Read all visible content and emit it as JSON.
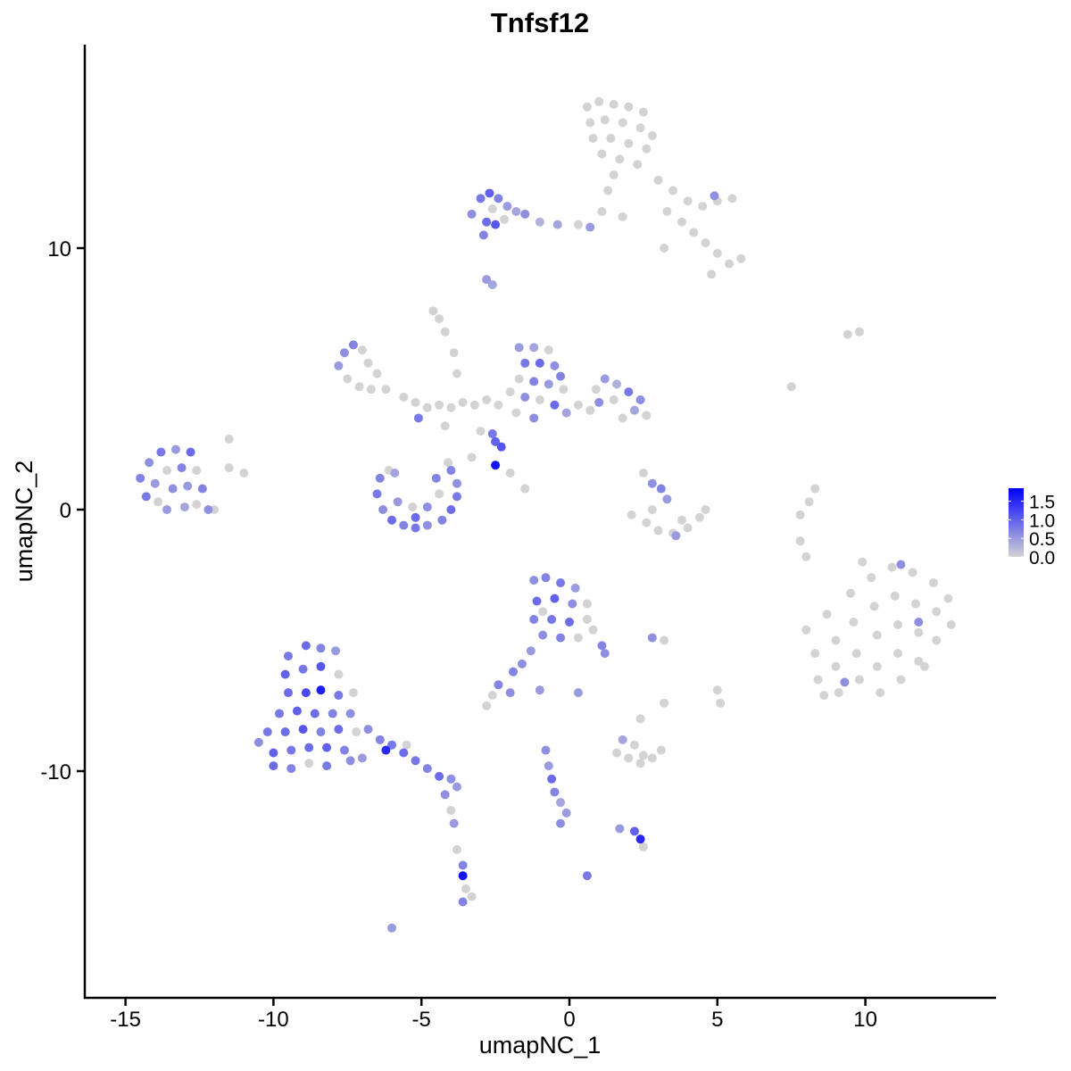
{
  "chart_data": {
    "type": "scatter",
    "title": "Tnfsf12",
    "xlabel": "umapNC_1",
    "ylabel": "umapNC_2",
    "xlim": [
      -16.4,
      14.4
    ],
    "ylim": [
      -18.7,
      17.8
    ],
    "xticks": [
      -15,
      -10,
      -5,
      0,
      5,
      10
    ],
    "yticks": [
      -10,
      0,
      10
    ],
    "grid": false,
    "legend": {
      "placement": "right",
      "type": "colorbar",
      "ticks": [
        "0.0",
        "0.5",
        "1.0",
        "1.5"
      ],
      "tick_values": [
        0,
        0.5,
        1.0,
        1.5
      ],
      "range": [
        0,
        1.85
      ],
      "low_color": "#d3d3d3",
      "high_color": "#0000ff"
    },
    "point_fields": [
      "x",
      "y",
      "expression"
    ],
    "points": [
      [
        0.6,
        15.4,
        0
      ],
      [
        1.0,
        15.6,
        0
      ],
      [
        1.5,
        15.5,
        0
      ],
      [
        2.0,
        15.4,
        0
      ],
      [
        2.5,
        15.2,
        0
      ],
      [
        0.7,
        14.8,
        0
      ],
      [
        1.2,
        14.9,
        0
      ],
      [
        1.8,
        14.8,
        0
      ],
      [
        2.4,
        14.6,
        0
      ],
      [
        2.8,
        14.3,
        0
      ],
      [
        0.8,
        14.2,
        0
      ],
      [
        1.4,
        14.2,
        0
      ],
      [
        2.0,
        14.0,
        0
      ],
      [
        2.6,
        13.8,
        0
      ],
      [
        1.1,
        13.6,
        0
      ],
      [
        1.7,
        13.4,
        0
      ],
      [
        2.3,
        13.2,
        0
      ],
      [
        1.5,
        12.8,
        0
      ],
      [
        1.3,
        12.2,
        0
      ],
      [
        1.1,
        11.4,
        0
      ],
      [
        3.0,
        12.6,
        0
      ],
      [
        3.5,
        12.2,
        0
      ],
      [
        4.0,
        11.8,
        0
      ],
      [
        4.5,
        11.6,
        0
      ],
      [
        5.0,
        11.8,
        0
      ],
      [
        5.5,
        11.9,
        0
      ],
      [
        3.3,
        11.4,
        0
      ],
      [
        3.8,
        11.0,
        0
      ],
      [
        4.2,
        10.6,
        0
      ],
      [
        4.6,
        10.2,
        0
      ],
      [
        5.0,
        9.8,
        0
      ],
      [
        5.4,
        9.4,
        0
      ],
      [
        5.8,
        9.6,
        0
      ],
      [
        4.8,
        9.0,
        0
      ],
      [
        3.2,
        10.0,
        0
      ],
      [
        1.8,
        11.2,
        0
      ],
      [
        4.9,
        12.0,
        0.6
      ],
      [
        -3.3,
        11.3,
        0.6
      ],
      [
        -3.0,
        11.9,
        0.8
      ],
      [
        -2.7,
        12.1,
        1.0
      ],
      [
        -2.4,
        11.9,
        0.7
      ],
      [
        -2.1,
        11.6,
        0.5
      ],
      [
        -1.8,
        11.4,
        0.4
      ],
      [
        -2.8,
        11.0,
        0.9
      ],
      [
        -2.5,
        10.9,
        1.1
      ],
      [
        -2.9,
        10.5,
        0.7
      ],
      [
        -2.2,
        11.1,
        0
      ],
      [
        -1.5,
        11.3,
        0.6
      ],
      [
        -1.0,
        11.0,
        0.3
      ],
      [
        -0.4,
        10.9,
        0.4
      ],
      [
        0.3,
        10.9,
        0
      ],
      [
        0.7,
        10.8,
        0.5
      ],
      [
        -2.6,
        11.5,
        0
      ],
      [
        -2.8,
        8.8,
        0.5
      ],
      [
        -2.6,
        8.6,
        0.4
      ],
      [
        -4.6,
        7.6,
        0
      ],
      [
        -4.4,
        7.3,
        0
      ],
      [
        -4.2,
        6.8,
        0
      ],
      [
        -3.9,
        6.0,
        0
      ],
      [
        -3.8,
        5.2,
        0
      ],
      [
        -7.6,
        6.0,
        0.6
      ],
      [
        -7.3,
        6.3,
        0.7
      ],
      [
        -7.8,
        5.5,
        0.5
      ],
      [
        -7.5,
        5.0,
        0
      ],
      [
        -7.1,
        4.7,
        0
      ],
      [
        -6.7,
        4.6,
        0
      ],
      [
        -6.8,
        5.6,
        0
      ],
      [
        -6.5,
        5.2,
        0
      ],
      [
        -6.2,
        4.6,
        0
      ],
      [
        -7.0,
        6.1,
        0
      ],
      [
        -5.6,
        4.3,
        0
      ],
      [
        -5.2,
        4.1,
        0
      ],
      [
        -4.8,
        3.9,
        0
      ],
      [
        -4.4,
        4.0,
        0
      ],
      [
        -4.0,
        3.9,
        0
      ],
      [
        -3.6,
        4.1,
        0
      ],
      [
        -3.2,
        4.0,
        0
      ],
      [
        -2.8,
        4.2,
        0
      ],
      [
        -2.4,
        4.0,
        0
      ],
      [
        -5.1,
        3.5,
        0.8
      ],
      [
        -4.2,
        3.2,
        0
      ],
      [
        -3.0,
        3.0,
        0
      ],
      [
        -3.3,
        2.0,
        0
      ],
      [
        -4.1,
        1.8,
        0
      ],
      [
        -1.7,
        6.2,
        0.5
      ],
      [
        -1.2,
        6.2,
        0.4
      ],
      [
        -0.7,
        6.1,
        0
      ],
      [
        -1.5,
        5.6,
        0.8
      ],
      [
        -1.0,
        5.6,
        0.9
      ],
      [
        -0.5,
        5.5,
        0.6
      ],
      [
        -1.7,
        5.0,
        0
      ],
      [
        -1.2,
        4.9,
        0.7
      ],
      [
        -0.7,
        4.8,
        0.5
      ],
      [
        -0.2,
        4.6,
        0
      ],
      [
        -1.5,
        4.3,
        0.6
      ],
      [
        -1.0,
        4.2,
        0
      ],
      [
        -0.5,
        4.0,
        0.9
      ],
      [
        -0.1,
        3.7,
        0.4
      ],
      [
        -1.8,
        3.7,
        0
      ],
      [
        -1.2,
        3.5,
        0.6
      ],
      [
        -2.0,
        4.5,
        0
      ],
      [
        -0.3,
        5.1,
        0.7
      ],
      [
        0.3,
        4.0,
        0
      ],
      [
        0.7,
        3.8,
        0
      ],
      [
        0.9,
        4.6,
        0
      ],
      [
        1.2,
        5.0,
        0.5
      ],
      [
        1.6,
        4.8,
        0.3
      ],
      [
        2.0,
        4.5,
        0.8
      ],
      [
        2.4,
        4.2,
        0.6
      ],
      [
        1.5,
        4.2,
        0
      ],
      [
        2.2,
        3.8,
        0.4
      ],
      [
        2.6,
        3.6,
        0
      ],
      [
        1.0,
        4.1,
        0.6
      ],
      [
        1.8,
        3.5,
        0
      ],
      [
        -2.5,
        2.6,
        1.0
      ],
      [
        -2.3,
        2.4,
        1.1
      ],
      [
        -2.6,
        2.9,
        0.8
      ],
      [
        -2.5,
        1.7,
        1.7
      ],
      [
        -2.0,
        1.4,
        0
      ],
      [
        -1.5,
        0.8,
        0
      ],
      [
        -14.5,
        1.2,
        0.7
      ],
      [
        -14.2,
        1.8,
        0.6
      ],
      [
        -13.8,
        2.2,
        0.8
      ],
      [
        -13.3,
        2.3,
        0.5
      ],
      [
        -12.8,
        2.2,
        0.9
      ],
      [
        -14.0,
        1.0,
        0.5
      ],
      [
        -13.6,
        1.5,
        0
      ],
      [
        -13.1,
        1.6,
        0.7
      ],
      [
        -12.6,
        1.5,
        0
      ],
      [
        -14.3,
        0.5,
        0.8
      ],
      [
        -13.9,
        0.3,
        0
      ],
      [
        -13.4,
        0.8,
        0.6
      ],
      [
        -12.9,
        0.9,
        0.5
      ],
      [
        -12.4,
        0.8,
        0.7
      ],
      [
        -12.6,
        0.2,
        0
      ],
      [
        -12.2,
        0.0,
        0.6
      ],
      [
        -13.0,
        0.1,
        0.4
      ],
      [
        -13.6,
        0.0,
        0.5
      ],
      [
        -12.0,
        0.0,
        0
      ],
      [
        -11.5,
        1.6,
        0
      ],
      [
        -11.0,
        1.4,
        0
      ],
      [
        -11.5,
        2.7,
        0
      ],
      [
        -6.4,
        1.2,
        0.7
      ],
      [
        -6.5,
        0.6,
        0.8
      ],
      [
        -6.3,
        0.0,
        0.6
      ],
      [
        -6.0,
        -0.4,
        0.9
      ],
      [
        -5.6,
        -0.6,
        0.7
      ],
      [
        -5.2,
        -0.7,
        0.8
      ],
      [
        -4.8,
        -0.6,
        0.6
      ],
      [
        -4.3,
        -0.4,
        0.7
      ],
      [
        -4.0,
        0.0,
        0.9
      ],
      [
        -3.8,
        0.5,
        0.8
      ],
      [
        -3.8,
        1.0,
        0.6
      ],
      [
        -4.0,
        1.5,
        0.7
      ],
      [
        -5.8,
        0.3,
        0.5
      ],
      [
        -5.3,
        0.1,
        0
      ],
      [
        -4.8,
        0.1,
        0.6
      ],
      [
        -4.4,
        0.6,
        0
      ],
      [
        -5.9,
        1.4,
        0.4
      ],
      [
        -4.5,
        1.2,
        0.7
      ],
      [
        -6.1,
        1.5,
        0
      ],
      [
        -5.2,
        -0.3,
        0.9
      ],
      [
        2.5,
        1.4,
        0
      ],
      [
        2.8,
        1.0,
        0.6
      ],
      [
        3.1,
        0.8,
        0.7
      ],
      [
        3.3,
        0.4,
        0.5
      ],
      [
        2.8,
        0.0,
        0
      ],
      [
        2.1,
        -0.2,
        0
      ],
      [
        2.6,
        -0.5,
        0
      ],
      [
        3.0,
        -0.8,
        0
      ],
      [
        3.5,
        -0.9,
        0
      ],
      [
        4.0,
        -0.7,
        0
      ],
      [
        4.4,
        -0.3,
        0
      ],
      [
        4.6,
        0.0,
        0
      ],
      [
        3.8,
        -0.4,
        0
      ],
      [
        3.6,
        -1.0,
        0.5
      ],
      [
        8.3,
        0.8,
        0
      ],
      [
        8.1,
        0.3,
        0
      ],
      [
        7.8,
        -0.2,
        0
      ],
      [
        7.8,
        -1.2,
        0
      ],
      [
        8.0,
        -1.8,
        0
      ],
      [
        9.4,
        6.7,
        0
      ],
      [
        9.8,
        6.8,
        0
      ],
      [
        7.5,
        4.7,
        0
      ],
      [
        8.0,
        -4.6,
        0
      ],
      [
        8.3,
        -5.5,
        0
      ],
      [
        8.4,
        -6.5,
        0
      ],
      [
        8.7,
        -4.0,
        0
      ],
      [
        9.0,
        -5.0,
        0
      ],
      [
        9.0,
        -6.0,
        0
      ],
      [
        9.1,
        -7.0,
        0
      ],
      [
        9.5,
        -3.2,
        0
      ],
      [
        9.6,
        -4.3,
        0
      ],
      [
        9.7,
        -5.5,
        0
      ],
      [
        9.8,
        -6.5,
        0
      ],
      [
        10.2,
        -2.6,
        0
      ],
      [
        10.3,
        -3.7,
        0
      ],
      [
        10.4,
        -4.8,
        0
      ],
      [
        10.4,
        -6.0,
        0
      ],
      [
        10.5,
        -7.0,
        0
      ],
      [
        10.9,
        -2.2,
        0
      ],
      [
        11.0,
        -3.3,
        0
      ],
      [
        11.1,
        -4.4,
        0
      ],
      [
        11.1,
        -5.5,
        0
      ],
      [
        11.2,
        -6.5,
        0
      ],
      [
        11.6,
        -2.4,
        0
      ],
      [
        11.7,
        -3.6,
        0
      ],
      [
        11.8,
        -4.7,
        0
      ],
      [
        11.8,
        -5.8,
        0
      ],
      [
        12.3,
        -2.8,
        0
      ],
      [
        12.4,
        -3.9,
        0
      ],
      [
        12.4,
        -5.0,
        0
      ],
      [
        12.8,
        -3.4,
        0
      ],
      [
        12.9,
        -4.4,
        0
      ],
      [
        9.9,
        -2.0,
        0
      ],
      [
        11.2,
        -2.1,
        0.6
      ],
      [
        11.8,
        -4.3,
        0.6
      ],
      [
        9.3,
        -6.6,
        0.6
      ],
      [
        12.0,
        -6.0,
        0
      ],
      [
        8.6,
        -7.1,
        0
      ],
      [
        -1.2,
        -2.7,
        0.6
      ],
      [
        -0.8,
        -2.6,
        0.7
      ],
      [
        -0.3,
        -2.8,
        0.8
      ],
      [
        0.2,
        -3.0,
        0.5
      ],
      [
        -1.1,
        -3.5,
        0.9
      ],
      [
        -0.5,
        -3.4,
        1.0
      ],
      [
        0.1,
        -3.6,
        0.6
      ],
      [
        0.6,
        -3.6,
        0
      ],
      [
        -1.2,
        -4.2,
        0.7
      ],
      [
        -0.6,
        -4.2,
        0.8
      ],
      [
        0.0,
        -4.3,
        0.9
      ],
      [
        0.6,
        -4.2,
        0
      ],
      [
        -0.9,
        -4.8,
        0.6
      ],
      [
        -0.3,
        -4.9,
        0.7
      ],
      [
        0.3,
        -4.9,
        0
      ],
      [
        0.8,
        -4.6,
        0
      ],
      [
        1.1,
        -5.2,
        0.7
      ],
      [
        1.2,
        -5.5,
        0.6
      ],
      [
        -1.3,
        -5.4,
        0.5
      ],
      [
        -1.6,
        -5.9,
        0.6
      ],
      [
        -1.9,
        -6.2,
        0.7
      ],
      [
        -0.9,
        -3.9,
        0
      ],
      [
        -9.5,
        -5.6,
        0.8
      ],
      [
        -8.9,
        -5.2,
        0.9
      ],
      [
        -8.4,
        -5.3,
        0.7
      ],
      [
        -7.9,
        -5.4,
        0.5
      ],
      [
        -9.6,
        -6.3,
        1.0
      ],
      [
        -9.0,
        -6.1,
        0.8
      ],
      [
        -8.4,
        -6.0,
        1.1
      ],
      [
        -7.8,
        -6.3,
        0
      ],
      [
        -9.5,
        -7.0,
        0.9
      ],
      [
        -8.9,
        -7.0,
        1.2
      ],
      [
        -8.4,
        -6.9,
        1.6
      ],
      [
        -7.8,
        -7.1,
        0.8
      ],
      [
        -7.3,
        -7.0,
        0
      ],
      [
        -9.8,
        -7.8,
        0.8
      ],
      [
        -9.2,
        -7.7,
        1.0
      ],
      [
        -8.6,
        -7.8,
        0.9
      ],
      [
        -8.0,
        -7.8,
        0.7
      ],
      [
        -7.4,
        -7.8,
        0.6
      ],
      [
        -10.2,
        -8.5,
        0.8
      ],
      [
        -9.6,
        -8.5,
        0.9
      ],
      [
        -9.0,
        -8.4,
        1.1
      ],
      [
        -8.4,
        -8.5,
        0.7
      ],
      [
        -7.8,
        -8.4,
        0.9
      ],
      [
        -7.2,
        -8.5,
        0
      ],
      [
        -10.5,
        -8.9,
        0.6
      ],
      [
        -10.0,
        -9.3,
        1.0
      ],
      [
        -9.4,
        -9.2,
        0.8
      ],
      [
        -8.8,
        -9.1,
        0.9
      ],
      [
        -8.2,
        -9.1,
        1.0
      ],
      [
        -7.6,
        -9.2,
        0.7
      ],
      [
        -10.0,
        -9.8,
        0.9
      ],
      [
        -9.4,
        -9.9,
        0.7
      ],
      [
        -8.8,
        -9.7,
        0
      ],
      [
        -8.2,
        -9.8,
        0.8
      ],
      [
        -7.4,
        -9.6,
        0.6
      ],
      [
        -7.0,
        -9.5,
        0.5
      ],
      [
        -6.8,
        -8.4,
        0.6
      ],
      [
        -6.4,
        -8.8,
        0.7
      ],
      [
        -6.0,
        -9.0,
        0.8
      ],
      [
        -5.6,
        -9.3,
        0.9
      ],
      [
        -5.2,
        -9.6,
        0.8
      ],
      [
        -4.8,
        -9.9,
        0.7
      ],
      [
        -4.4,
        -10.2,
        0.9
      ],
      [
        -4.0,
        -10.3,
        0.6
      ],
      [
        -3.8,
        -10.6,
        0.5
      ],
      [
        -5.5,
        -9.0,
        0
      ],
      [
        -6.2,
        -9.2,
        1.5
      ],
      [
        -4.2,
        -10.9,
        0.6
      ],
      [
        -4.0,
        -11.5,
        0
      ],
      [
        -3.9,
        -12.0,
        0.5
      ],
      [
        -3.8,
        -13.0,
        0
      ],
      [
        -3.6,
        -13.6,
        0.7
      ],
      [
        -3.6,
        -14.0,
        1.7
      ],
      [
        -3.5,
        -14.5,
        0
      ],
      [
        -3.6,
        -15.0,
        0.7
      ],
      [
        -3.3,
        -14.8,
        0
      ],
      [
        -2.4,
        -6.7,
        0.7
      ],
      [
        -2.6,
        -7.1,
        0
      ],
      [
        -2.0,
        -7.0,
        0.6
      ],
      [
        -2.8,
        -7.5,
        0
      ],
      [
        -1.0,
        -6.9,
        0.5
      ],
      [
        -0.8,
        -9.2,
        0.6
      ],
      [
        -0.7,
        -9.8,
        0.5
      ],
      [
        -0.6,
        -10.3,
        0.9
      ],
      [
        -0.5,
        -10.8,
        0.7
      ],
      [
        -0.3,
        -11.2,
        0.4
      ],
      [
        -0.1,
        -11.6,
        0.5
      ],
      [
        -0.3,
        -12.0,
        0.6
      ],
      [
        0.3,
        -7.0,
        0.5
      ],
      [
        1.6,
        -9.3,
        0
      ],
      [
        2.0,
        -9.5,
        0
      ],
      [
        2.4,
        -9.7,
        0
      ],
      [
        2.8,
        -9.5,
        0
      ],
      [
        3.1,
        -9.2,
        0
      ],
      [
        2.2,
        -9.0,
        0
      ],
      [
        1.8,
        -8.8,
        0.4
      ],
      [
        2.5,
        -9.4,
        0
      ],
      [
        2.2,
        -12.3,
        1.0
      ],
      [
        2.4,
        -12.6,
        1.5
      ],
      [
        2.5,
        -12.9,
        0
      ],
      [
        1.7,
        -12.2,
        0.5
      ],
      [
        0.6,
        -14.0,
        0.8
      ],
      [
        -6.0,
        -16.0,
        0.5
      ],
      [
        2.8,
        -4.9,
        0.6
      ],
      [
        3.2,
        -5.0,
        0
      ],
      [
        5.0,
        -6.9,
        0
      ],
      [
        5.1,
        -7.4,
        0
      ],
      [
        3.2,
        -7.4,
        0
      ],
      [
        2.4,
        -8.0,
        0
      ]
    ]
  }
}
